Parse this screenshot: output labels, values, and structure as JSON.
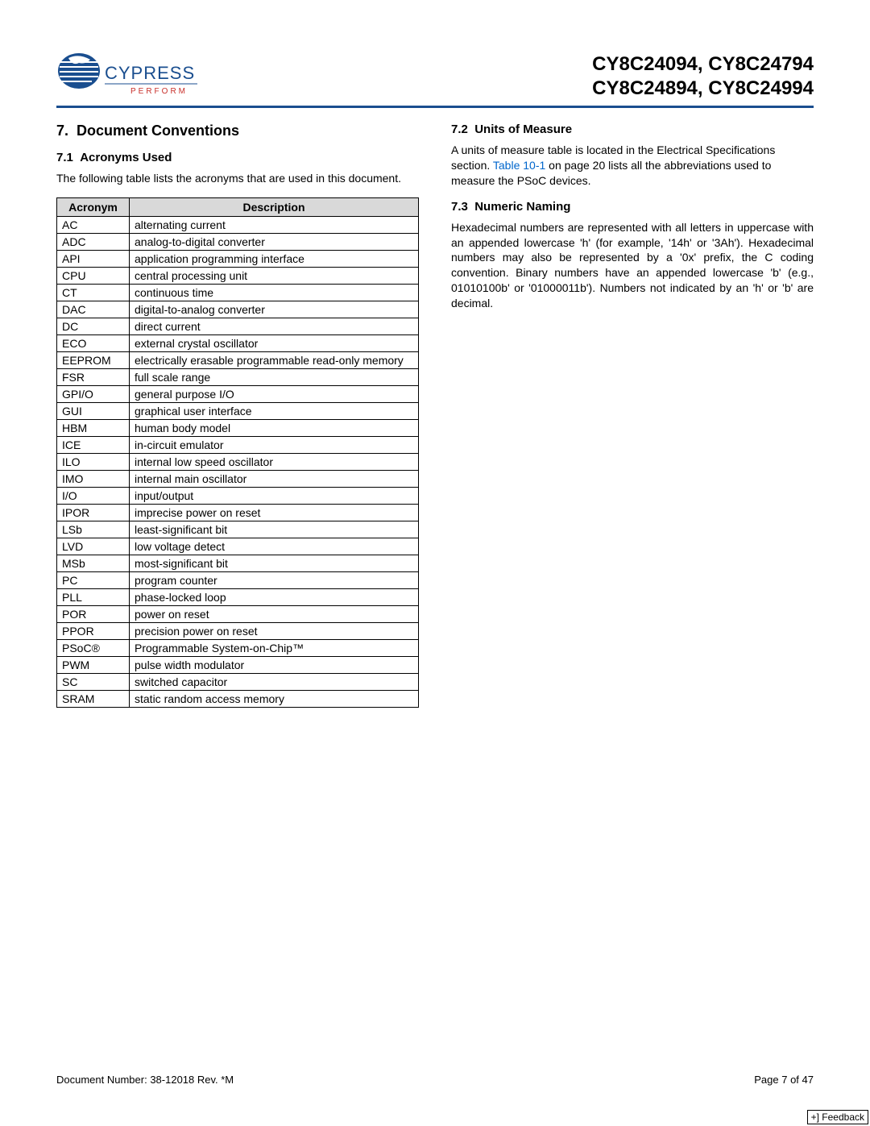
{
  "header": {
    "brand_name": "CYPRESS",
    "brand_tagline": "P E R F O R M",
    "title_line1": "CY8C24094, CY8C24794",
    "title_line2": "CY8C24894, CY8C24994",
    "logo_colors": {
      "blue": "#1a4e8f",
      "red": "#c8302b"
    },
    "rule_color": "#1a4e8f"
  },
  "left": {
    "section_number": "7.",
    "section_title": "Document Conventions",
    "sub1_number": "7.1",
    "sub1_title": "Acronyms Used",
    "intro": "The following table lists the acronyms that are used in this document.",
    "table": {
      "header_acronym": "Acronym",
      "header_desc": "Description",
      "header_bg": "#d9d9d9",
      "border_color": "#000000",
      "rows": [
        [
          "AC",
          "alternating current"
        ],
        [
          "ADC",
          "analog-to-digital converter"
        ],
        [
          "API",
          "application programming interface"
        ],
        [
          "CPU",
          "central processing unit"
        ],
        [
          "CT",
          "continuous time"
        ],
        [
          "DAC",
          "digital-to-analog converter"
        ],
        [
          "DC",
          "direct current"
        ],
        [
          "ECO",
          "external crystal oscillator"
        ],
        [
          "EEPROM",
          "electrically erasable programmable read-only memory"
        ],
        [
          "FSR",
          "full scale range"
        ],
        [
          "GPI/O",
          "general purpose I/O"
        ],
        [
          "GUI",
          "graphical user interface"
        ],
        [
          "HBM",
          "human body model"
        ],
        [
          "ICE",
          "in-circuit emulator"
        ],
        [
          "ILO",
          "internal low speed oscillator"
        ],
        [
          "IMO",
          "internal main oscillator"
        ],
        [
          "I/O",
          "input/output"
        ],
        [
          "IPOR",
          "imprecise power on reset"
        ],
        [
          "LSb",
          "least-significant bit"
        ],
        [
          "LVD",
          "low voltage detect"
        ],
        [
          "MSb",
          "most-significant bit"
        ],
        [
          "PC",
          "program counter"
        ],
        [
          "PLL",
          "phase-locked loop"
        ],
        [
          "POR",
          "power on reset"
        ],
        [
          "PPOR",
          "precision power on reset"
        ],
        [
          "PSoC®",
          "Programmable System-on-Chip™"
        ],
        [
          "PWM",
          "pulse width modulator"
        ],
        [
          "SC",
          "switched capacitor"
        ],
        [
          "SRAM",
          "static random access memory"
        ]
      ]
    }
  },
  "right": {
    "sub2_number": "7.2",
    "sub2_title": "Units of Measure",
    "p2_before": "A units of measure table is located in the Electrical Specifications section. ",
    "p2_link": "Table 10-1",
    "p2_after": " on page 20 lists all the abbreviations used to measure the PSoC devices.",
    "sub3_number": "7.3",
    "sub3_title": "Numeric Naming",
    "p3": "Hexadecimal numbers are represented with all letters in uppercase with an appended lowercase 'h' (for example, '14h' or '3Ah'). Hexadecimal numbers may also be represented by a '0x' prefix, the C coding convention. Binary numbers have an appended lowercase 'b' (e.g., 01010100b' or '01000011b'). Numbers not indicated by an 'h' or 'b' are decimal."
  },
  "footer": {
    "doc": "Document Number: 38-12018 Rev. *M",
    "page": "Page 7 of 47",
    "feedback": "+] Feedback"
  },
  "link_color": "#0066cc"
}
